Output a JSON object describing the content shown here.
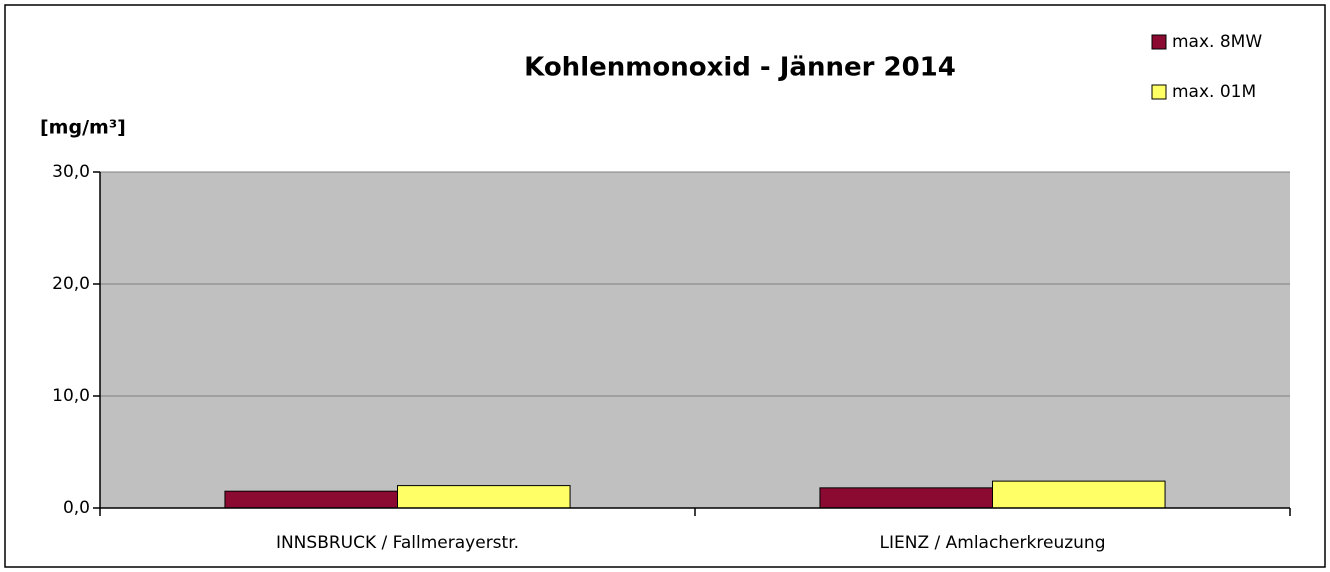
{
  "chart_data": {
    "type": "bar",
    "title": "Kohlenmonoxid - Jänner 2014",
    "ylabel": "[mg/m³]",
    "categories": [
      "INNSBRUCK / Fallmerayerstr.",
      "LIENZ / Amlacherkreuzung"
    ],
    "series": [
      {
        "name": "max. 8MW",
        "color": "#8b0a32",
        "values": [
          1.5,
          1.8
        ]
      },
      {
        "name": "max. 01M",
        "color": "#ffff66",
        "values": [
          2.0,
          2.4
        ]
      }
    ],
    "ylim": [
      0,
      30
    ],
    "yticks": [
      {
        "value": 0,
        "label": "0,0"
      },
      {
        "value": 10,
        "label": "10,0"
      },
      {
        "value": 20,
        "label": "20,0"
      },
      {
        "value": 30,
        "label": "30,0"
      }
    ],
    "grid": true,
    "legend": "top-right",
    "plot_background": "#c0c0c0"
  }
}
